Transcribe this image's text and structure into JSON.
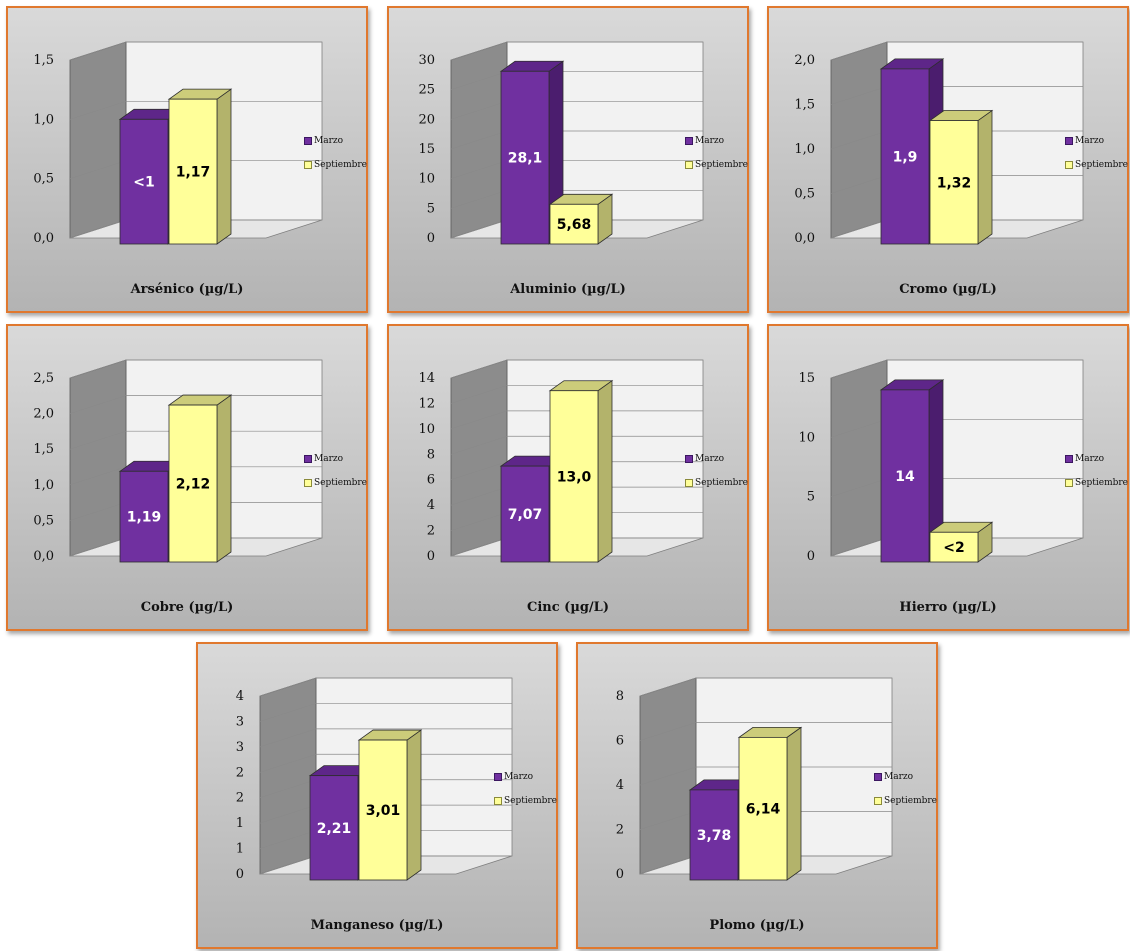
{
  "legend": {
    "marzo": "Marzo",
    "septiembre": "Septiembre"
  },
  "colors": {
    "marzo_front": "#7030a0",
    "marzo_side": "#4b1d6e",
    "marzo_top": "#5e2689",
    "sept_front": "#ffff99",
    "sept_side": "#b3b36b",
    "sept_top": "#cccc7a",
    "panel_border": "#e0782e"
  },
  "chart_data": [
    {
      "type": "bar",
      "title": "Arsénico (µg/L)",
      "ylim": [
        0,
        1.5
      ],
      "ticks": [
        "0,0",
        "0,5",
        "1,0",
        "1,5"
      ],
      "series": [
        {
          "name": "Marzo",
          "values": [
            1.0
          ],
          "labels": [
            "<1"
          ]
        },
        {
          "name": "Septiembre",
          "values": [
            1.17
          ],
          "labels": [
            "1,17"
          ]
        }
      ]
    },
    {
      "type": "bar",
      "title": "Aluminio (µg/L)",
      "ylim": [
        0,
        30
      ],
      "ticks": [
        "0",
        "5",
        "10",
        "15",
        "20",
        "25",
        "30"
      ],
      "series": [
        {
          "name": "Marzo",
          "values": [
            28.1
          ],
          "labels": [
            "28,1"
          ]
        },
        {
          "name": "Septiembre",
          "values": [
            5.68
          ],
          "labels": [
            "5,68"
          ]
        }
      ]
    },
    {
      "type": "bar",
      "title": "Cromo (µg/L)",
      "ylim": [
        0,
        2.0
      ],
      "ticks": [
        "0,0",
        "0,5",
        "1,0",
        "1,5",
        "2,0"
      ],
      "series": [
        {
          "name": "Marzo",
          "values": [
            1.9
          ],
          "labels": [
            "1,9"
          ]
        },
        {
          "name": "Septiembre",
          "values": [
            1.32
          ],
          "labels": [
            "1,32"
          ]
        }
      ]
    },
    {
      "type": "bar",
      "title": "Cobre (µg/L)",
      "ylim": [
        0,
        2.5
      ],
      "ticks": [
        "0,0",
        "0,5",
        "1,0",
        "1,5",
        "2,0",
        "2,5"
      ],
      "series": [
        {
          "name": "Marzo",
          "values": [
            1.19
          ],
          "labels": [
            "1,19"
          ]
        },
        {
          "name": "Septiembre",
          "values": [
            2.12
          ],
          "labels": [
            "2,12"
          ]
        }
      ]
    },
    {
      "type": "bar",
      "title": "Cinc (µg/L)",
      "ylim": [
        0,
        14
      ],
      "ticks": [
        "0",
        "2",
        "4",
        "6",
        "8",
        "10",
        "12",
        "14"
      ],
      "series": [
        {
          "name": "Marzo",
          "values": [
            7.07
          ],
          "labels": [
            "7,07"
          ]
        },
        {
          "name": "Septiembre",
          "values": [
            13.0
          ],
          "labels": [
            "13,0"
          ]
        }
      ]
    },
    {
      "type": "bar",
      "title": "Hierro (µg/L)",
      "ylim": [
        0,
        15
      ],
      "ticks": [
        "0",
        "5",
        "10",
        "15"
      ],
      "series": [
        {
          "name": "Marzo",
          "values": [
            14
          ],
          "labels": [
            "14"
          ]
        },
        {
          "name": "Septiembre",
          "values": [
            2
          ],
          "labels": [
            "<2"
          ]
        }
      ]
    },
    {
      "type": "bar",
      "title": "Manganeso (µg/L)",
      "ylim": [
        0,
        4
      ],
      "ticks": [
        "0",
        "1",
        "1",
        "2",
        "2",
        "3",
        "3",
        "4"
      ],
      "series": [
        {
          "name": "Marzo",
          "values": [
            2.21
          ],
          "labels": [
            "2,21"
          ]
        },
        {
          "name": "Septiembre",
          "values": [
            3.01
          ],
          "labels": [
            "3,01"
          ]
        }
      ]
    },
    {
      "type": "bar",
      "title": "Plomo (µg/L)",
      "ylim": [
        0,
        8
      ],
      "ticks": [
        "0",
        "2",
        "4",
        "6",
        "8"
      ],
      "series": [
        {
          "name": "Marzo",
          "values": [
            3.78
          ],
          "labels": [
            "3,78"
          ]
        },
        {
          "name": "Septiembre",
          "values": [
            6.14
          ],
          "labels": [
            "6,14"
          ]
        }
      ]
    }
  ]
}
